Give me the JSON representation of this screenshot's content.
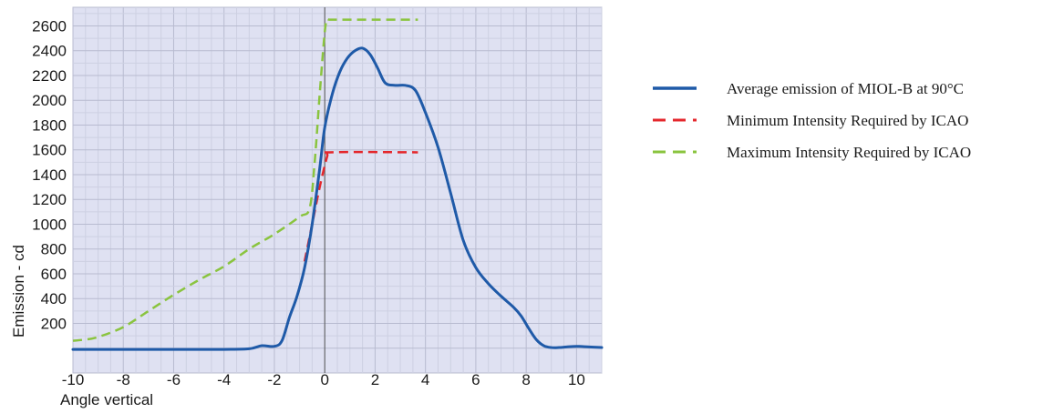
{
  "chart_data": {
    "type": "line",
    "title": "",
    "xlabel": "Angle vertical",
    "ylabel": "Emission - cd",
    "xlim": [
      -10,
      11
    ],
    "ylim": [
      -200,
      2750
    ],
    "x_ticks": [
      -10,
      -8,
      -6,
      -4,
      -2,
      0,
      2,
      4,
      6,
      8,
      10
    ],
    "x_tick_labels": [
      "-10",
      "-8",
      "-6",
      "-4",
      "-2",
      "0",
      "2",
      "4",
      "6",
      "8",
      "10"
    ],
    "y_ticks": [
      200,
      400,
      600,
      800,
      1000,
      1200,
      1400,
      1600,
      1800,
      2000,
      2200,
      2400,
      2600
    ],
    "y_tick_labels": [
      "200",
      "400",
      "600",
      "800",
      "1000",
      "1200",
      "1400",
      "1600",
      "1800",
      "2000",
      "2200",
      "2400",
      "2600"
    ],
    "grid": true,
    "legend_position": "right",
    "plot_background": "#dfe1f2",
    "series": [
      {
        "name": "Average emission of MIOL-B at 90°C",
        "color": "#1f5aa8",
        "style": "solid",
        "x": [
          -10,
          -8,
          -6,
          -4,
          -3,
          -2.5,
          -2,
          -1.7,
          -1.4,
          -1.1,
          -0.8,
          -0.5,
          -0.2,
          0,
          0.3,
          0.6,
          0.9,
          1.2,
          1.5,
          1.8,
          2.1,
          2.4,
          2.8,
          3.2,
          3.6,
          4.0,
          4.5,
          5.0,
          5.5,
          6.0,
          6.5,
          7.0,
          7.5,
          7.8,
          8.1,
          8.4,
          8.7,
          9.0,
          9.3,
          9.6,
          10,
          10.5,
          11
        ],
        "y": [
          -10,
          -10,
          -10,
          -10,
          -5,
          20,
          15,
          60,
          250,
          420,
          650,
          1000,
          1450,
          1780,
          2050,
          2230,
          2340,
          2400,
          2420,
          2370,
          2260,
          2140,
          2120,
          2120,
          2080,
          1900,
          1620,
          1250,
          870,
          650,
          520,
          420,
          330,
          260,
          160,
          70,
          20,
          5,
          5,
          10,
          15,
          10,
          5
        ]
      },
      {
        "name": "Minimum Intensity Required by ICAO",
        "color": "#e4272c",
        "style": "dashed",
        "x": [
          -0.8,
          -0.5,
          -0.2,
          0.1,
          0.2,
          3.7
        ],
        "y": [
          700,
          1000,
          1300,
          1550,
          1580,
          1580
        ]
      },
      {
        "name": "Maximum Intensity Required by ICAO",
        "color": "#8ac43f",
        "style": "dashed",
        "x": [
          -10,
          -9.5,
          -9,
          -8,
          -7,
          -6,
          -5,
          -4,
          -3,
          -2,
          -1,
          -0.6,
          -0.4,
          -0.2,
          0,
          0.1,
          0.2,
          1,
          2,
          3,
          3.7
        ],
        "y": [
          60,
          70,
          90,
          170,
          300,
          430,
          550,
          660,
          800,
          920,
          1060,
          1130,
          1500,
          2050,
          2550,
          2650,
          2650,
          2650,
          2650,
          2650,
          2650
        ]
      }
    ]
  }
}
